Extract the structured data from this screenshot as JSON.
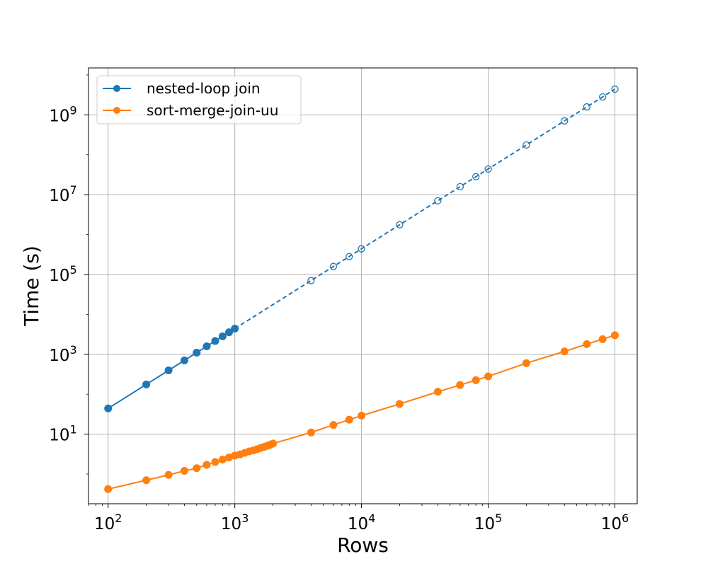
{
  "chart_data": {
    "type": "line",
    "xlabel": "Rows",
    "ylabel": "Time (s)",
    "xscale": "log",
    "yscale": "log",
    "xlim": [
      70,
      1500000
    ],
    "ylim": [
      0.18,
      15000000000
    ],
    "grid": true,
    "legend_position": "top-left",
    "x_ticks": [
      {
        "base": "10",
        "exp": "2",
        "value": 100
      },
      {
        "base": "10",
        "exp": "3",
        "value": 1000
      },
      {
        "base": "10",
        "exp": "4",
        "value": 10000
      },
      {
        "base": "10",
        "exp": "5",
        "value": 100000
      },
      {
        "base": "10",
        "exp": "6",
        "value": 1000000
      }
    ],
    "y_ticks": [
      {
        "base": "10",
        "exp": "1",
        "value": 10
      },
      {
        "base": "10",
        "exp": "3",
        "value": 1000
      },
      {
        "base": "10",
        "exp": "5",
        "value": 100000
      },
      {
        "base": "10",
        "exp": "7",
        "value": 10000000
      },
      {
        "base": "10",
        "exp": "9",
        "value": 1000000000
      }
    ],
    "series": [
      {
        "name": "nested-loop join",
        "color": "#1f77b4",
        "measured": {
          "x": [
            100,
            200,
            300,
            400,
            500,
            600,
            700,
            800,
            900,
            1000
          ],
          "y": [
            44,
            176,
            396,
            704,
            1100,
            1584,
            2156,
            2816,
            3564,
            4400
          ]
        },
        "extrapolated": {
          "x": [
            1000,
            4000,
            6000,
            8000,
            10000,
            20000,
            40000,
            60000,
            80000,
            100000,
            200000,
            400000,
            600000,
            800000,
            1000000
          ],
          "y": [
            4400,
            70400,
            158400,
            281600,
            440000,
            1760000,
            7040000,
            15840000,
            28160000,
            44000000,
            176000000,
            704000000,
            1584000000,
            2816000000,
            4400000000
          ]
        }
      },
      {
        "name": "sort-merge-join-uu",
        "color": "#ff7f0e",
        "measured": {
          "x": [
            100,
            200,
            300,
            400,
            500,
            600,
            700,
            800,
            900,
            1000,
            1100,
            1200,
            1300,
            1400,
            1500,
            1600,
            1700,
            1800,
            1900,
            2000,
            4000,
            6000,
            8000,
            10000,
            20000,
            40000,
            60000,
            80000,
            100000,
            200000,
            400000,
            600000,
            800000,
            1000000
          ],
          "y": [
            0.42,
            0.7,
            0.95,
            1.2,
            1.4,
            1.7,
            2.0,
            2.3,
            2.6,
            2.9,
            3.1,
            3.4,
            3.7,
            3.9,
            4.2,
            4.5,
            4.8,
            5.1,
            5.4,
            5.8,
            11.0,
            17.0,
            23.0,
            29.0,
            57.0,
            115.0,
            170.0,
            225.0,
            280.0,
            600.0,
            1180.0,
            1800.0,
            2400.0,
            3000.0
          ]
        }
      }
    ]
  }
}
